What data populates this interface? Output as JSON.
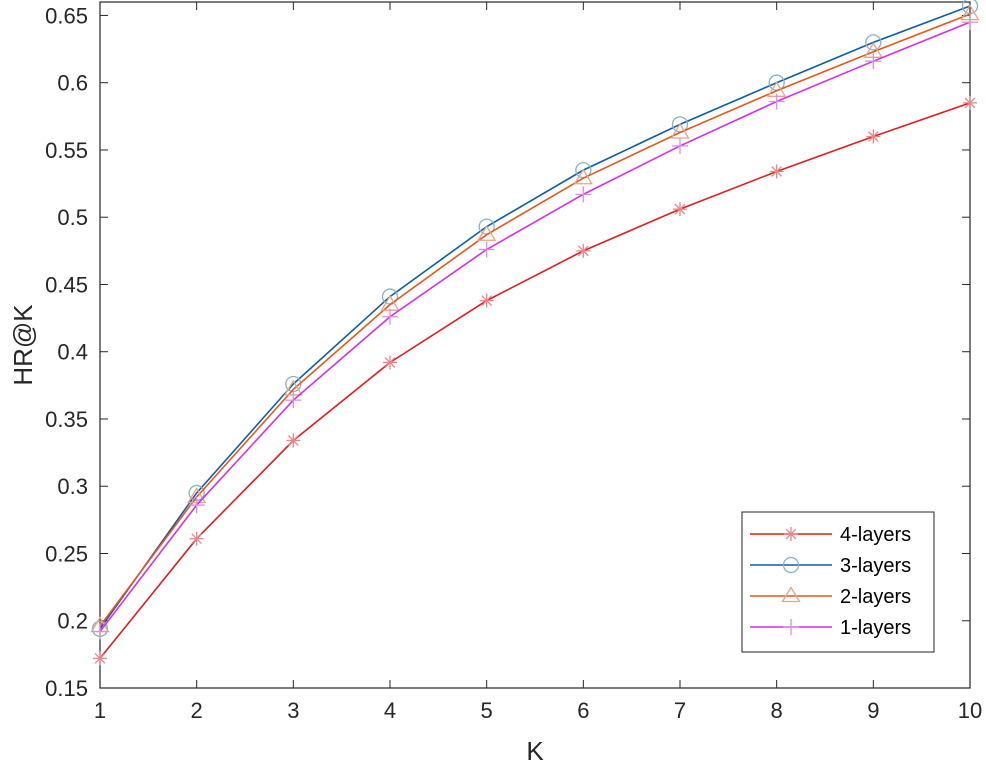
{
  "chart_data": {
    "type": "line",
    "xlabel": "K",
    "ylabel": "HR@K",
    "xlim": [
      1,
      10
    ],
    "ylim": [
      0.15,
      0.66
    ],
    "x": [
      1,
      2,
      3,
      4,
      5,
      6,
      7,
      8,
      9,
      10
    ],
    "xticks": [
      1,
      2,
      3,
      4,
      5,
      6,
      7,
      8,
      9,
      10
    ],
    "yticks": [
      0.15,
      0.2,
      0.25,
      0.3,
      0.35,
      0.4,
      0.45,
      0.5,
      0.55,
      0.6,
      0.65
    ],
    "ytick_labels": [
      "0.15",
      "0.2",
      "0.25",
      "0.3",
      "0.35",
      "0.4",
      "0.45",
      "0.5",
      "0.55",
      "0.6",
      "0.65"
    ],
    "grid": false,
    "legend_position": "bottom-right",
    "series": [
      {
        "name": "4-layers",
        "line_color": "#e41a1c",
        "marker_color": "#e8868a",
        "marker": "asterisk",
        "values": [
          0.172,
          0.261,
          0.334,
          0.392,
          0.438,
          0.475,
          0.506,
          0.534,
          0.56,
          0.585
        ]
      },
      {
        "name": "3-layers",
        "line_color": "#0a5ea8",
        "marker_color": "#8aafc9",
        "marker": "circle",
        "values": [
          0.194,
          0.295,
          0.376,
          0.441,
          0.493,
          0.535,
          0.569,
          0.6,
          0.63,
          0.657
        ]
      },
      {
        "name": "2-layers",
        "line_color": "#e3581a",
        "marker_color": "#e7a487",
        "marker": "triangle",
        "values": [
          0.196,
          0.292,
          0.372,
          0.435,
          0.487,
          0.529,
          0.563,
          0.594,
          0.623,
          0.651
        ]
      },
      {
        "name": "1-layers",
        "line_color": "#d62ee6",
        "marker_color": "#d98ee3",
        "marker": "plus",
        "values": [
          0.192,
          0.286,
          0.364,
          0.426,
          0.476,
          0.517,
          0.553,
          0.586,
          0.616,
          0.645
        ]
      }
    ]
  }
}
